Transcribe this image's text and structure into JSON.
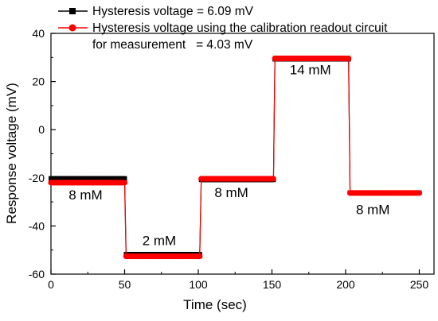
{
  "chart_data": {
    "type": "line",
    "xlabel": "Time (sec)",
    "ylabel": "Response voltage (mV)",
    "xlim": [
      0,
      260
    ],
    "ylim": [
      -60,
      40
    ],
    "xticks": [
      0,
      50,
      100,
      150,
      200,
      250
    ],
    "yticks": [
      -60,
      -40,
      -20,
      0,
      20,
      40
    ],
    "grid": false,
    "legend_position": "top-left",
    "series": [
      {
        "name": "Hysteresis voltage = 6.09 mV",
        "color": "#000000",
        "marker": "square",
        "segments": [
          {
            "x_start": 0,
            "x_end": 50,
            "y": -20.3
          },
          {
            "x_start": 51,
            "x_end": 101,
            "y": -51.8
          },
          {
            "x_start": 102,
            "x_end": 151,
            "y": -20.8
          },
          {
            "x_start": 152,
            "x_end": 202,
            "y": 29.3
          },
          {
            "x_start": 203,
            "x_end": 250,
            "y": -26.2
          }
        ]
      },
      {
        "name": "Hysteresis voltage using the calibration readout circuit for measurement = 4.03 mV",
        "color": "#ff0000",
        "marker": "circle",
        "segments": [
          {
            "x_start": 0,
            "x_end": 50,
            "y": -22.0
          },
          {
            "x_start": 51,
            "x_end": 101,
            "y": -52.6
          },
          {
            "x_start": 102,
            "x_end": 151,
            "y": -20.4
          },
          {
            "x_start": 152,
            "x_end": 202,
            "y": 29.6
          },
          {
            "x_start": 203,
            "x_end": 250,
            "y": -26.3
          }
        ]
      }
    ],
    "legend": [
      "Hysteresis voltage = 6.09 mV",
      "Hysteresis voltage using the calibration readout circuit",
      "for measurement   = 4.03 mV"
    ],
    "annotations": [
      {
        "text": "8 mM",
        "x": 12,
        "y": -29
      },
      {
        "text": "2 mM",
        "x": 62,
        "y": -48
      },
      {
        "text": "8 mM",
        "x": 111,
        "y": -28
      },
      {
        "text": "14 mM",
        "x": 162,
        "y": 23
      },
      {
        "text": "8 mM",
        "x": 207,
        "y": -35
      }
    ]
  }
}
